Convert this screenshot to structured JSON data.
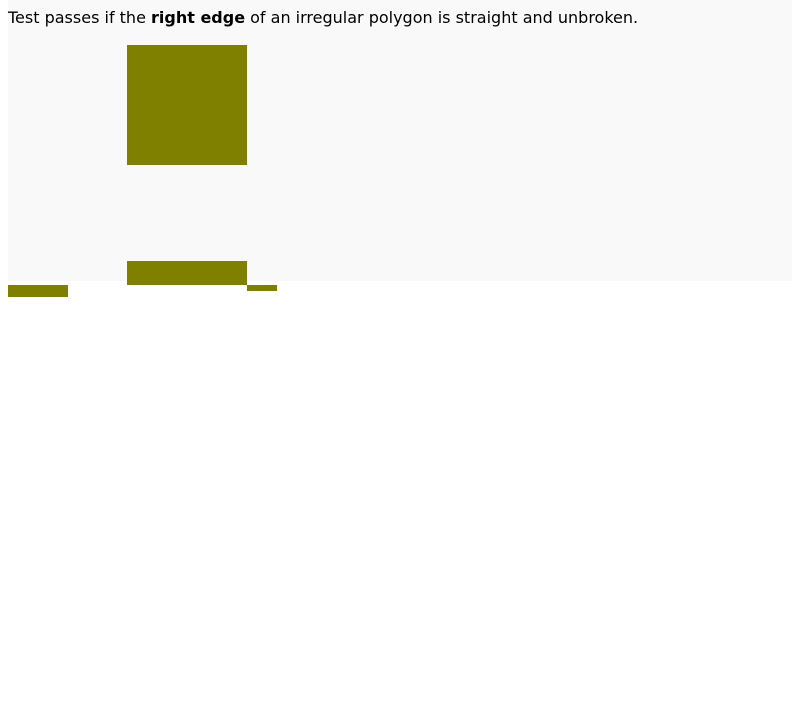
{
  "instruction": {
    "prefix": "Test passes if the ",
    "emphasis": "right edge",
    "suffix": " of an irregular polygon is straight and unbroken."
  },
  "colors": {
    "shape": "#808000",
    "test_area_background": "#f9f9f9",
    "page_background": "#ffffff"
  }
}
